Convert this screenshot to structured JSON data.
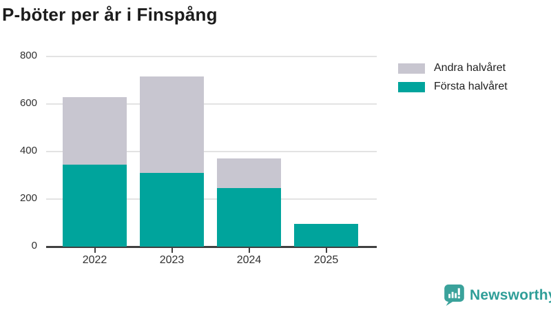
{
  "title": "P-böter per år i Finspång",
  "chart_data": {
    "type": "bar",
    "stacked": true,
    "title": "P-böter per år i Finspång",
    "categories": [
      "2022",
      "2023",
      "2024",
      "2025"
    ],
    "series": [
      {
        "name": "Första halvåret",
        "color": "#00a49c",
        "values": [
          345,
          310,
          245,
          95
        ]
      },
      {
        "name": "Andra halvåret",
        "color": "#c8c6d0",
        "values": [
          285,
          405,
          125,
          0
        ]
      }
    ],
    "totals": [
      630,
      715,
      370,
      95
    ],
    "xlabel": "",
    "ylabel": "",
    "ylim": [
      0,
      800
    ],
    "yticks": [
      0,
      200,
      400,
      600,
      800
    ],
    "grid": true,
    "legend_position": "right",
    "legend_order": [
      "Andra halvåret",
      "Första halvåret"
    ]
  },
  "legend": [
    {
      "label": "Andra halvåret",
      "color": "#c8c6d0"
    },
    {
      "label": "Första halvåret",
      "color": "#00a49c"
    }
  ],
  "branding": {
    "name": "Newsworthy",
    "color": "#2f9e98"
  }
}
